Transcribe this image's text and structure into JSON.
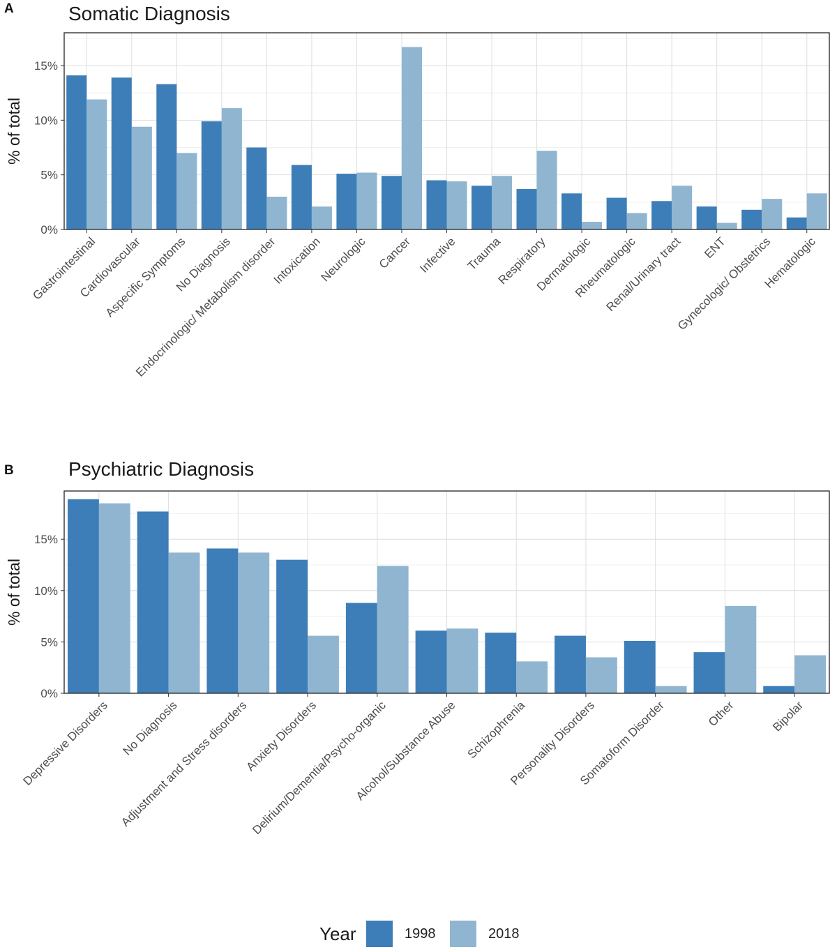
{
  "chart_data": [
    {
      "type": "bar",
      "panel": "A",
      "title": "Somatic Diagnosis",
      "xlabel": "",
      "ylabel": "% of total",
      "ylim": [
        0,
        18.0
      ],
      "yticks": [
        0,
        5,
        10,
        15
      ],
      "ytick_labels": [
        "0%",
        "5%",
        "10%",
        "15%"
      ],
      "grid": true,
      "categories": [
        "Gastrointestinal",
        "Cardiovascular",
        "Aspecific Symptoms",
        "No Diagnosis",
        "Endocrinologic/ Metabolism disorder",
        "Intoxication",
        "Neurologic",
        "Cancer",
        "Infective",
        "Trauma",
        "Respiratory",
        "Dermatologic",
        "Rheumatologic",
        "Renal/Urinary tract",
        "ENT",
        "Gynecologic/ Obstetrics",
        "Hematologic"
      ],
      "series": [
        {
          "name": "1998",
          "color": "#3d7eb8",
          "values": [
            14.1,
            13.9,
            13.3,
            9.9,
            7.5,
            5.9,
            5.1,
            4.9,
            4.5,
            4.0,
            3.7,
            3.3,
            2.9,
            2.6,
            2.1,
            1.8,
            1.1
          ]
        },
        {
          "name": "2018",
          "color": "#8fb5d1",
          "values": [
            11.9,
            9.4,
            7.0,
            11.1,
            3.0,
            2.1,
            5.2,
            16.7,
            4.4,
            4.9,
            7.2,
            0.7,
            1.5,
            4.0,
            0.6,
            2.8,
            3.3
          ]
        }
      ]
    },
    {
      "type": "bar",
      "panel": "B",
      "title": "Psychiatric Diagnosis",
      "xlabel": "",
      "ylabel": "% of total",
      "ylim": [
        0,
        19.7
      ],
      "yticks": [
        0,
        5,
        10,
        15
      ],
      "ytick_labels": [
        "0%",
        "5%",
        "10%",
        "15%"
      ],
      "grid": true,
      "categories": [
        "Depressive Disorders",
        "No Diagnosis",
        "Adjustment and Stress disorders",
        "Anxiety Disorders",
        "Delirium/Dementia/Psycho-organic",
        "Alcohol/Substance Abuse",
        "Schizophrenia",
        "Personality Disorders",
        "Somatoform Disorder",
        "Other",
        "Bipolar"
      ],
      "series": [
        {
          "name": "1998",
          "color": "#3d7eb8",
          "values": [
            18.9,
            17.7,
            14.1,
            13.0,
            8.8,
            6.1,
            5.9,
            5.6,
            5.1,
            4.0,
            0.7
          ]
        },
        {
          "name": "2018",
          "color": "#8fb5d1",
          "values": [
            18.5,
            13.7,
            13.7,
            5.6,
            12.4,
            6.3,
            3.1,
            3.5,
            0.7,
            8.5,
            3.7
          ]
        }
      ]
    }
  ],
  "legend": {
    "title": "Year",
    "items": [
      {
        "label": "1998",
        "color": "#3d7eb8"
      },
      {
        "label": "2018",
        "color": "#8fb5d1"
      }
    ]
  }
}
